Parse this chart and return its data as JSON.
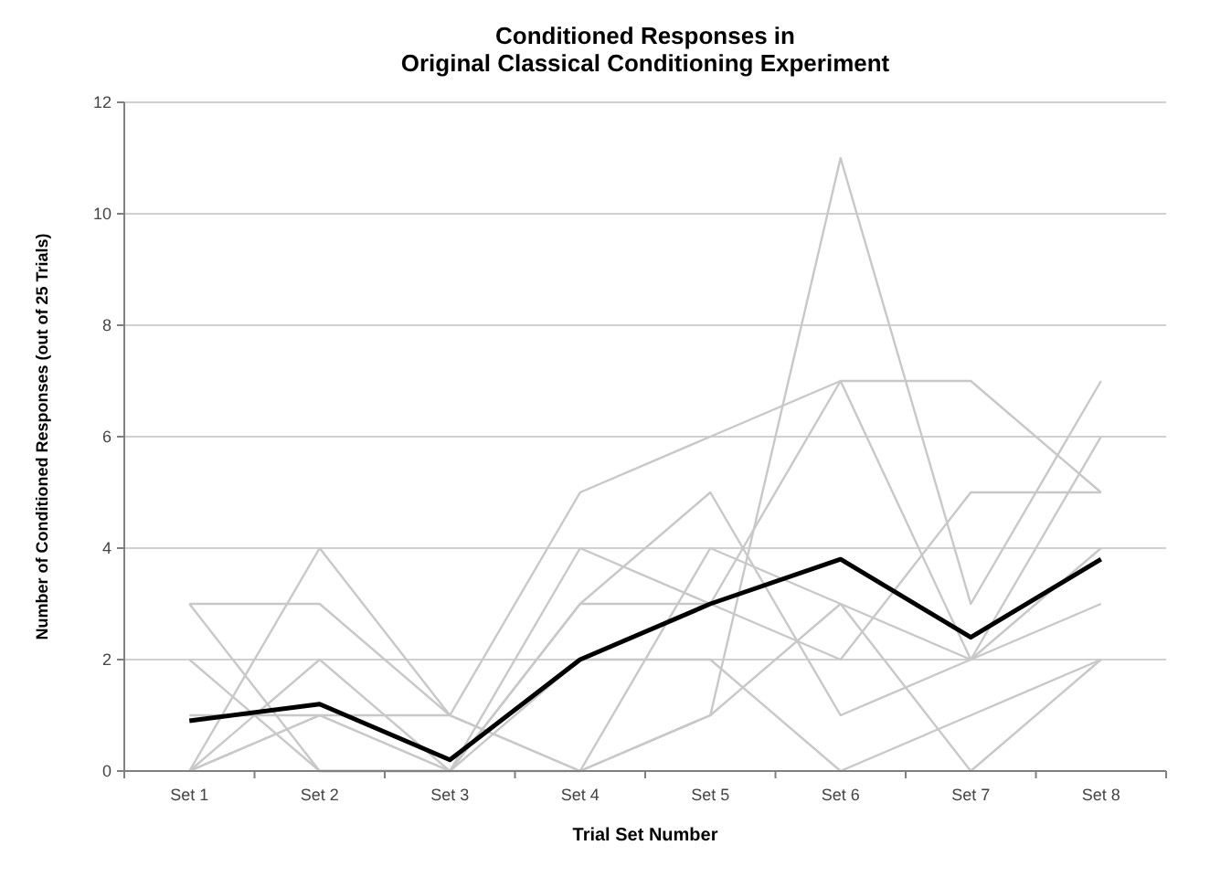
{
  "chart_data": {
    "type": "line",
    "title": "Conditioned Responses in\nOriginal Classical Conditioning Experiment",
    "xlabel": "Trial Set Number",
    "ylabel": "Number of Conditioned Responses (out of 25 Trials)",
    "categories": [
      "Set 1",
      "Set 2",
      "Set 3",
      "Set 4",
      "Set 5",
      "Set 6",
      "Set 7",
      "Set 8"
    ],
    "series": [
      {
        "color": "#c8c8c8",
        "values": [
          0,
          4,
          1,
          5,
          6,
          7,
          7,
          5
        ]
      },
      {
        "color": "#c8c8c8",
        "values": [
          3,
          3,
          1,
          0,
          1,
          11,
          3,
          7
        ]
      },
      {
        "color": "#c8c8c8",
        "values": [
          2,
          0,
          0,
          3,
          3,
          7,
          2,
          6
        ]
      },
      {
        "color": "#c8c8c8",
        "values": [
          3,
          0,
          0,
          4,
          3,
          2,
          5,
          5
        ]
      },
      {
        "color": "#c8c8c8",
        "values": [
          0,
          2,
          0,
          3,
          5,
          1,
          2,
          4
        ]
      },
      {
        "color": "#c8c8c8",
        "values": [
          0,
          1,
          1,
          0,
          4,
          3,
          0,
          2
        ]
      },
      {
        "color": "#c8c8c8",
        "values": [
          0,
          1,
          0,
          0,
          1,
          3,
          2,
          3
        ]
      },
      {
        "color": "#c8c8c8",
        "values": [
          1,
          1,
          0,
          2,
          2,
          0,
          1,
          2
        ]
      },
      {
        "color": "#000000",
        "values": [
          0.9,
          1.2,
          0.2,
          2.0,
          3.0,
          3.8,
          2.4,
          3.8
        ]
      }
    ],
    "ylim": [
      0,
      12
    ],
    "yticks": [
      0,
      2,
      4,
      6,
      8,
      10,
      12
    ],
    "grid": "y",
    "marker": "none",
    "line_style": "solid"
  }
}
